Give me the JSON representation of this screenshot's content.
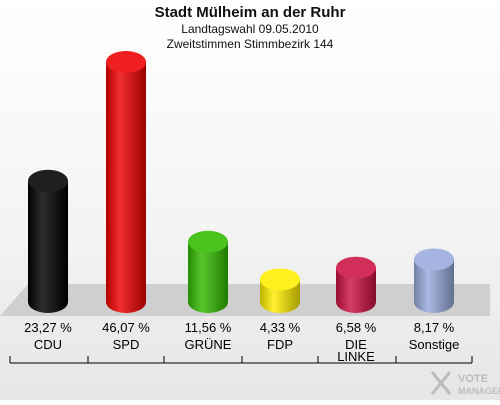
{
  "header": {
    "title": "Stadt Mülheim an der Ruhr",
    "subtitle1": "Landtagswahl 09.05.2010",
    "subtitle2": "Zweitstimmen Stimmbezirk 144"
  },
  "logo": {
    "line1": "VOTE",
    "line2": "MANAGER"
  },
  "chart_data": {
    "type": "bar",
    "title": "Stadt Mülheim an der Ruhr",
    "subtitle": "Landtagswahl 09.05.2010 — Zweitstimmen Stimmbezirk 144",
    "categories": [
      "CDU",
      "SPD",
      "GRÜNE",
      "FDP",
      "DIE LINKE",
      "Sonstige"
    ],
    "category_lines": [
      [
        "CDU"
      ],
      [
        "SPD"
      ],
      [
        "GRÜNE"
      ],
      [
        "FDP"
      ],
      [
        "DIE",
        "LINKE"
      ],
      [
        "Sonstige"
      ]
    ],
    "values": [
      23.27,
      46.07,
      11.56,
      4.33,
      6.58,
      8.17
    ],
    "value_labels": [
      "23,27 %",
      "46,07 %",
      "11,56 %",
      "4,33 %",
      "6,58 %",
      "8,17 %"
    ],
    "colors": [
      "#000000",
      "#ee0000",
      "#33bb00",
      "#ffee00",
      "#cc1144",
      "#99aadd"
    ],
    "ylim": [
      0,
      46.07
    ],
    "xlabel": "",
    "ylabel": "",
    "grid": false,
    "legend": "none"
  }
}
